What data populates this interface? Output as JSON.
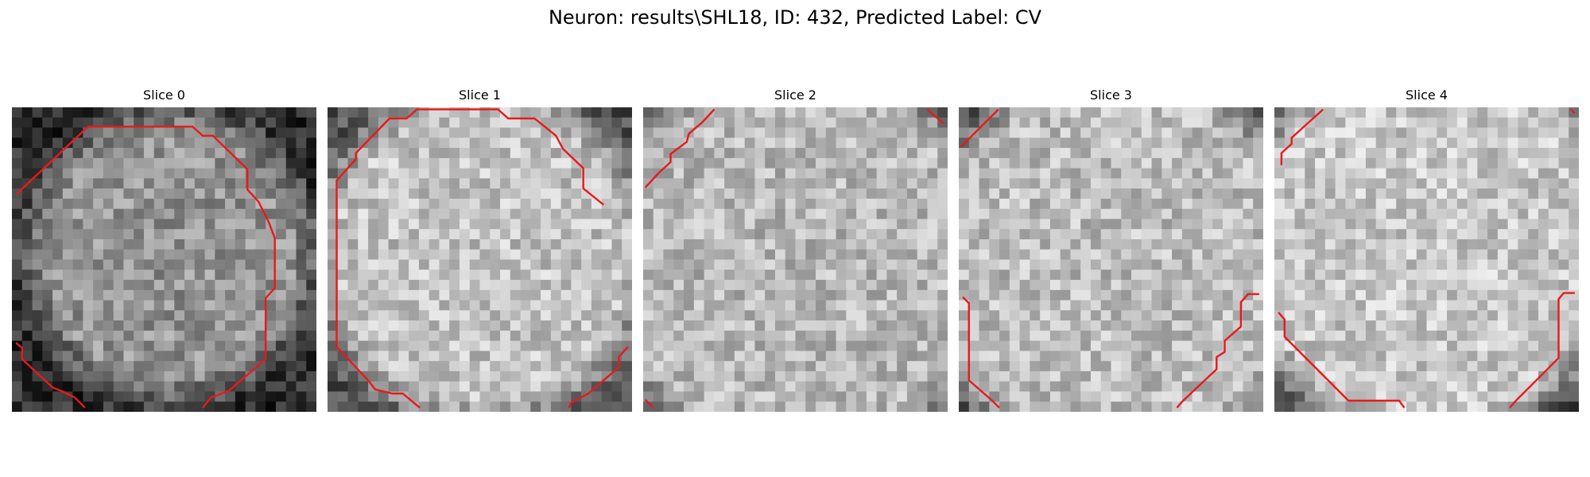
{
  "figure": {
    "title": "Neuron: results\\SHL18, ID: 432, Predicted Label: CV",
    "contour_color": "#e8191b",
    "panels": [
      {
        "title": "Slice 0",
        "grid_size": 30,
        "center": [
          15.5,
          14.5
        ],
        "radius": 14.5,
        "base_intensity": 0.58,
        "rim_intensity": 0.18,
        "contours": [
          [
            [
              0.4,
              8.6
            ],
            [
              7.5,
              1.9
            ],
            [
              17.8,
              1.9
            ],
            [
              18.8,
              2.8
            ],
            [
              19.8,
              2.8
            ],
            [
              23.2,
              6.1
            ],
            [
              23.2,
              8.1
            ],
            [
              24.3,
              9.3
            ],
            [
              24.8,
              10.3
            ],
            [
              25.3,
              11.3
            ],
            [
              25.9,
              12.9
            ],
            [
              25.9,
              17.8
            ],
            [
              25,
              18.8
            ],
            [
              25,
              24.8
            ],
            [
              21.4,
              27.9
            ],
            [
              19.6,
              28.6
            ],
            [
              18.8,
              29.6
            ]
          ],
          [
            [
              0.4,
              23.2
            ],
            [
              1,
              23.7
            ],
            [
              1,
              24.8
            ],
            [
              4,
              27.6
            ],
            [
              5,
              28
            ],
            [
              6.2,
              28.6
            ],
            [
              7.2,
              29.6
            ]
          ]
        ]
      },
      {
        "title": "Slice 1",
        "grid_size": 30,
        "center": [
          15.2,
          14.6
        ],
        "radius": 16.8,
        "base_intensity": 0.76,
        "rim_intensity": 0.32,
        "contours": [
          [
            [
              27.2,
              9.6
            ],
            [
              25.2,
              8.0
            ],
            [
              25.2,
              6.0
            ],
            [
              23.2,
              4.1
            ],
            [
              22.5,
              2.8
            ],
            [
              20.4,
              1.1
            ],
            [
              17.8,
              1.1
            ],
            [
              16.8,
              0.2
            ],
            [
              8.8,
              0.2
            ],
            [
              7.8,
              1.1
            ],
            [
              6.1,
              1.1
            ],
            [
              2.8,
              4.5
            ],
            [
              2.8,
              5.1
            ],
            [
              0.9,
              7.2
            ],
            [
              0.9,
              23.6
            ],
            [
              4,
              26.9
            ],
            [
              4.7,
              27.8
            ],
            [
              6.4,
              28.2
            ],
            [
              7.4,
              28.2
            ],
            [
              9.1,
              29.6
            ]
          ],
          [
            [
              29.6,
              23.6
            ],
            [
              28.7,
              24.6
            ],
            [
              28.7,
              25.6
            ],
            [
              25.7,
              28.2
            ],
            [
              24.0,
              29.1
            ],
            [
              23.8,
              29.6
            ]
          ]
        ]
      },
      {
        "title": "Slice 2",
        "grid_size": 30,
        "center": [
          15.2,
          15.2
        ],
        "radius": 20.0,
        "base_intensity": 0.72,
        "rim_intensity": 0.3,
        "contours": [
          [
            [
              0.2,
              7.9
            ],
            [
              1.5,
              6.5
            ],
            [
              2.7,
              5.4
            ],
            [
              2.7,
              4.6
            ],
            [
              4.3,
              3.4
            ],
            [
              4.5,
              2.6
            ],
            [
              5.8,
              1.5
            ],
            [
              7.0,
              0.2
            ]
          ],
          [
            [
              28.0,
              0.2
            ],
            [
              29.6,
              1.6
            ]
          ],
          [
            [
              0.2,
              28.8
            ],
            [
              1.0,
              29.6
            ]
          ]
        ]
      },
      {
        "title": "Slice 3",
        "grid_size": 30,
        "center": [
          15.5,
          15.5
        ],
        "radius": 19.5,
        "base_intensity": 0.74,
        "rim_intensity": 0.3,
        "contours": [
          [
            [
              0.2,
              3.9
            ],
            [
              3.9,
              0.2
            ]
          ],
          [
            [
              0.4,
              18.7
            ],
            [
              1.0,
              19.3
            ],
            [
              1.0,
              26.9
            ],
            [
              3.3,
              28.9
            ],
            [
              4.0,
              29.6
            ]
          ],
          [
            [
              29.6,
              18.4
            ],
            [
              28.5,
              18.4
            ],
            [
              27.8,
              19.2
            ],
            [
              27.8,
              21.6
            ],
            [
              26.2,
              23.0
            ],
            [
              26.2,
              24.1
            ],
            [
              25.4,
              24.6
            ],
            [
              25.4,
              25.8
            ],
            [
              22.0,
              29.0
            ],
            [
              21.5,
              29.6
            ]
          ]
        ]
      },
      {
        "title": "Slice 4",
        "grid_size": 30,
        "center": [
          15.2,
          13.5
        ],
        "radius": 19.5,
        "base_intensity": 0.78,
        "rim_intensity": 0.28,
        "contours": [
          [
            [
              0.7,
              5.7
            ],
            [
              0.7,
              4.5
            ],
            [
              1.7,
              3.6
            ],
            [
              1.7,
              3.0
            ],
            [
              4.8,
              0.2
            ]
          ],
          [
            [
              29.2,
              0.2
            ],
            [
              29.6,
              0.6
            ]
          ],
          [
            [
              0.4,
              20.2
            ],
            [
              1.0,
              20.9
            ],
            [
              1.0,
              22.6
            ],
            [
              7.3,
              28.9
            ],
            [
              12.3,
              28.9
            ],
            [
              12.8,
              29.6
            ]
          ],
          [
            [
              29.6,
              18.3
            ],
            [
              28.5,
              18.3
            ],
            [
              28.0,
              18.9
            ],
            [
              28.0,
              24.7
            ],
            [
              23.8,
              28.9
            ],
            [
              23.2,
              29.6
            ]
          ]
        ]
      }
    ]
  }
}
